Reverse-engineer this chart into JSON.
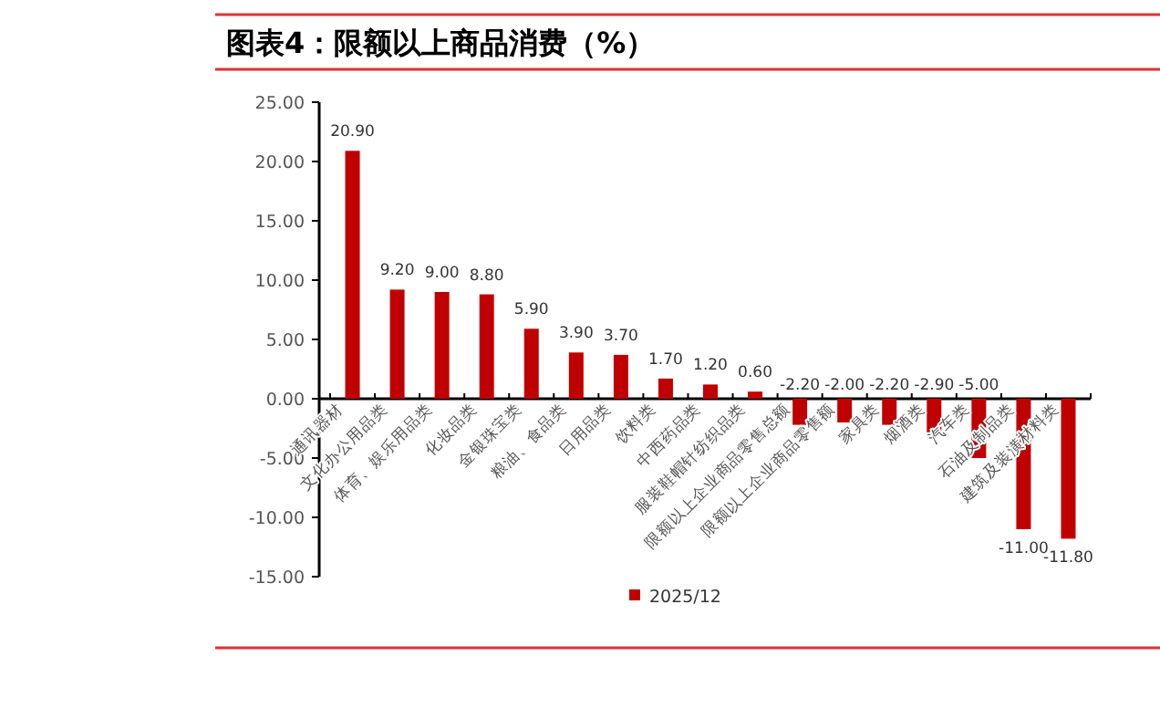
{
  "chart_data": {
    "type": "bar",
    "title": "图表4：限额以上商品消费（%）",
    "categories": [
      "通讯器材",
      "文化办公用品类",
      "体育、娱乐用品类",
      "化妆品类",
      "金银珠宝类",
      "粮油、食品类",
      "日用品类",
      "饮料类",
      "中西药品类",
      "服装鞋帽针纺织品类",
      "限额以上企业商品零售总额",
      "限额以上企业商品零售额",
      "家具类",
      "烟酒类",
      "汽车类",
      "石油及制品类",
      "建筑及装潢材料类"
    ],
    "series": [
      {
        "name": "2025/12",
        "color": "#c00000",
        "values": [
          20.9,
          9.2,
          9.0,
          8.8,
          5.9,
          3.9,
          3.7,
          1.7,
          1.2,
          0.6,
          -2.2,
          -2.0,
          -2.2,
          -2.9,
          -5.0,
          -11.0,
          -11.8
        ],
        "value_labels": [
          "20.90",
          "9.20",
          "9.00",
          "8.80",
          "5.90",
          "3.90",
          "3.70",
          "1.70",
          "1.20",
          "0.60",
          "-2.20",
          "-2.00",
          "-2.20",
          "-2.90",
          "-5.00",
          "-11.00",
          "-11.80"
        ]
      }
    ],
    "ylim": [
      -15,
      25
    ],
    "yticks": [
      {
        "value": -15,
        "label": "-15.00"
      },
      {
        "value": -10,
        "label": "-10.00"
      },
      {
        "value": -5,
        "label": "-5.00"
      },
      {
        "value": 0,
        "label": "0.00"
      },
      {
        "value": 5,
        "label": "5.00"
      },
      {
        "value": 10,
        "label": "10.00"
      },
      {
        "value": 15,
        "label": "15.00"
      },
      {
        "value": 20,
        "label": "20.00"
      },
      {
        "value": 25,
        "label": "25.00"
      }
    ],
    "grid": false,
    "legend": "bottom"
  }
}
